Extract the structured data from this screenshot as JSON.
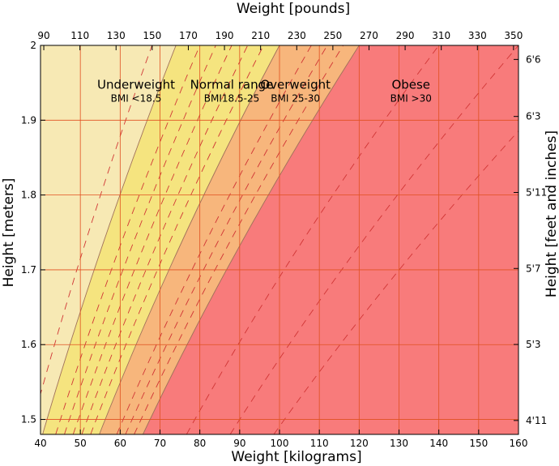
{
  "chart_data": {
    "type": "area",
    "title": "",
    "xlabel_bottom": "Weight [kilograms]",
    "xlabel_top": "Weight [pounds]",
    "ylabel_left": "Height [meters]",
    "ylabel_right": "Height [feet and inches]",
    "xlim": [
      40,
      160
    ],
    "ylim": [
      1.48,
      2.0
    ],
    "x_ticks": [
      40,
      50,
      60,
      70,
      80,
      90,
      100,
      110,
      120,
      130,
      140,
      150,
      160
    ],
    "y_ticks": [
      1.5,
      1.6,
      1.7,
      1.8,
      1.9,
      2.0
    ],
    "y_tick_labels": [
      "1.5",
      "1.6",
      "1.7",
      "1.8",
      "1.9",
      "2"
    ],
    "top_ticks_lb": [
      90,
      110,
      130,
      150,
      170,
      190,
      210,
      230,
      250,
      270,
      290,
      310,
      330,
      350
    ],
    "right_ticks": [
      {
        "label": "4'11",
        "inches": 59
      },
      {
        "label": "5'3",
        "inches": 63
      },
      {
        "label": "5'7",
        "inches": 67
      },
      {
        "label": "5'11",
        "inches": 71
      },
      {
        "label": "6'3",
        "inches": 75
      },
      {
        "label": "6'6",
        "inches": 78
      }
    ],
    "grid": true,
    "zones": [
      {
        "name": "Underweight",
        "sub": "BMI <18.5",
        "bmi_min": 0,
        "bmi_max": 18.5,
        "color": "#f7e9b4",
        "label_x": 64,
        "label_y": 1.93
      },
      {
        "name": "Normal range",
        "sub": "BMI18.5-25",
        "bmi_min": 18.5,
        "bmi_max": 25,
        "color": "#f5e47f",
        "label_x": 88,
        "label_y": 1.93
      },
      {
        "name": "Overweight",
        "sub": "BMI 25-30",
        "bmi_min": 25,
        "bmi_max": 30,
        "color": "#f7b67c",
        "label_x": 104,
        "label_y": 1.93
      },
      {
        "name": "Obese",
        "sub": "BMI >30",
        "bmi_min": 30,
        "bmi_max": 999,
        "color": "#f87b7b",
        "label_x": 133,
        "label_y": 1.93
      }
    ],
    "dashed_bmi_lines": [
      17,
      20,
      21,
      22,
      23,
      24,
      27,
      28,
      29,
      35,
      40,
      45
    ],
    "grid_color": "#e05020",
    "boundary_color": "#a0705a",
    "dash_color": "#d03535"
  }
}
